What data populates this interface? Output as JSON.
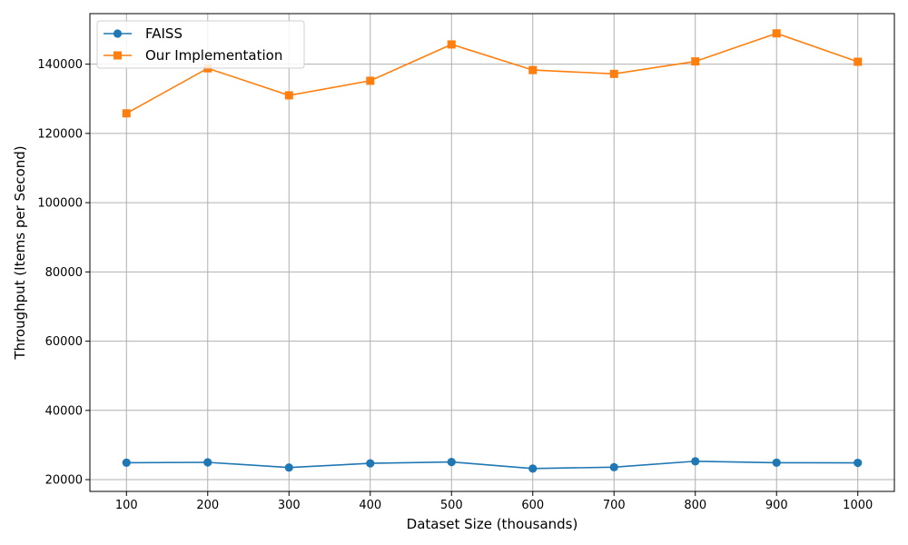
{
  "chart_data": {
    "type": "line",
    "title": "",
    "xlabel": "Dataset Size (thousands)",
    "ylabel": "Throughput (Items per Second)",
    "x": [
      100,
      200,
      300,
      400,
      500,
      600,
      700,
      800,
      900,
      1000
    ],
    "x_ticks": [
      "100",
      "200",
      "300",
      "400",
      "500",
      "600",
      "700",
      "800",
      "900",
      "1000"
    ],
    "y_ticks": [
      "20000",
      "40000",
      "60000",
      "80000",
      "100000",
      "120000",
      "140000"
    ],
    "y_tick_values": [
      20000,
      40000,
      60000,
      80000,
      100000,
      120000,
      140000
    ],
    "xlim": [
      55,
      1045
    ],
    "ylim": [
      16600,
      154600
    ],
    "grid": true,
    "legend_position": "top-left",
    "series": [
      {
        "name": "FAISS",
        "color": "#1f77b4",
        "marker": "circle",
        "values": [
          24900,
          25000,
          23500,
          24700,
          25100,
          23200,
          23600,
          25300,
          24900,
          24850
        ]
      },
      {
        "name": "Our Implementation",
        "color": "#ff7f0e",
        "marker": "square",
        "values": [
          125800,
          138800,
          131000,
          135200,
          145700,
          138300,
          137200,
          140800,
          148900,
          140700
        ]
      }
    ]
  }
}
